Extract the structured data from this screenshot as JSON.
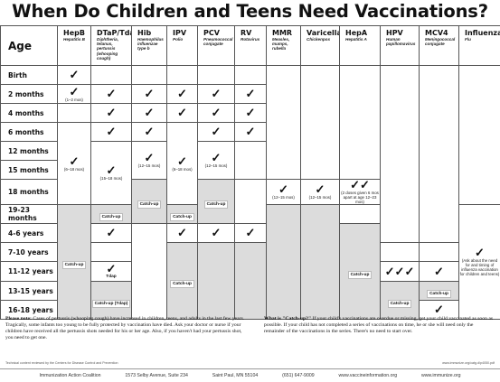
{
  "title": "When Do Children and Teens Need Vaccinations?",
  "age_header": "Age",
  "vaccines": [
    {
      "name": "HepB",
      "sub": "Hepatitis B"
    },
    {
      "name": "DTaP/Tdap",
      "sub": "Diphtheria, tetanus, pertussis (whooping cough)"
    },
    {
      "name": "Hib",
      "sub": "Haemophilus influenzae type b"
    },
    {
      "name": "IPV",
      "sub": "Polio"
    },
    {
      "name": "PCV",
      "sub": "Pneumococcal conjugate"
    },
    {
      "name": "RV",
      "sub": "Rotavirus"
    },
    {
      "name": "MMR",
      "sub": "Measles, mumps, rubella"
    },
    {
      "name": "Varicella",
      "sub": "Chickenpox"
    },
    {
      "name": "HepA",
      "sub": "Hepatitis A"
    },
    {
      "name": "HPV",
      "sub": "Human papillomavirus"
    },
    {
      "name": "MCV4",
      "sub": "Meningococcal conjugate"
    },
    {
      "name": "Influenza",
      "sub": "Flu"
    }
  ],
  "ages": [
    "Birth",
    "2 months",
    "4 months",
    "6 months",
    "12 months",
    "15 months",
    "18 months",
    "19-23 months",
    "4-6 years",
    "7-10 years",
    "11-12 years",
    "13-15 years",
    "16-18 years"
  ],
  "marks": {
    "check": "✓",
    "double_check": "✓✓",
    "triple_check": "✓✓✓",
    "catch_up": "Catch-up",
    "tdap": "Tdap",
    "catch_up_tdap": "Catch-up (Tdap)"
  },
  "ranges": {
    "hepb_1_2": "(1–2 mos)",
    "hepb_6_18": "(6–18 mos)",
    "dtap_15_18": "(15–18 mos)",
    "hib_12_15": "(12–15 mos)",
    "ipv_6_18": "(6–18 mos)",
    "pcv_12_15": "(12–15 mos)",
    "mmr_12_15": "(12–15 mos)",
    "var_12_15": "(12–15 mos)",
    "hepa_doses": "(2 doses given 6 mos apart at age 12–23 mos)",
    "flu": "(Ask about the need for and timing of influenza vaccination for children and teens)"
  },
  "notes": {
    "left_heading": "Please note:",
    "left_text": "Cases of pertussis (whooping cough) have increased in children, teens, and adults in the last few years. Tragically, some infants too young to be fully protected by vaccination have died. Ask your doctor or nurse if your children have received all the pertussis shots needed for his or her age. Also, if you haven't had your pertussis shot, you need to get one.",
    "right_heading": "What is \"Catch-up?\"",
    "right_text": "If your child's vaccinations are overdue or missing, get your child vaccinated as soon as possible. If your child has not completed a series of vaccinations on time, he or she will need only the remainder of the vaccinations in the series. There's no need to start over."
  },
  "small_left": "Technical content reviewed by the Centers for Disease Control and Prevention",
  "small_right": "www.immunize.org/catg.d/p4050.pdf",
  "footer": {
    "org": "Immunization Action Coalition",
    "address": "1573 Selby Avenue, Suite 234",
    "city": "Saint Paul, MN 55104",
    "phone": "(651) 647-9009",
    "web1": "www.vaccineinformation.org",
    "web2": "www.immunize.org"
  }
}
